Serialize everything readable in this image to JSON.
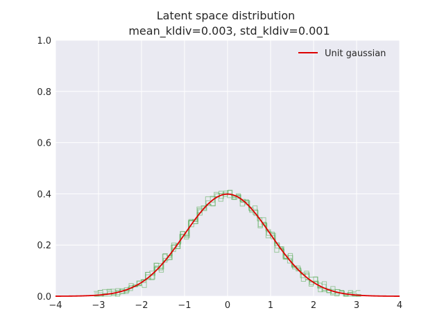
{
  "chart_data": {
    "type": "line",
    "title": "Latent space distribution",
    "subtitle": "mean_kldiv=0.003, std_kldiv=0.001",
    "xlabel": "",
    "ylabel": "",
    "xlim": [
      -4,
      4
    ],
    "ylim": [
      0,
      1.0
    ],
    "xticks": [
      "−4",
      "−3",
      "−2",
      "−1",
      "0",
      "1",
      "2",
      "3",
      "4"
    ],
    "xtick_values": [
      -4,
      -3,
      -2,
      -1,
      0,
      1,
      2,
      3,
      4
    ],
    "yticks": [
      "0.0",
      "0.2",
      "0.4",
      "0.6",
      "0.8",
      "1.0"
    ],
    "ytick_values": [
      0,
      0.2,
      0.4,
      0.6,
      0.8,
      1.0
    ],
    "grid": true,
    "legend_position": "top-right",
    "background_color": "#eaeaf2",
    "series": [
      {
        "name": "Unit gaussian",
        "color": "#dd0000",
        "function": "standard normal pdf"
      }
    ],
    "histograms": {
      "color": "#55aa55",
      "x": [
        -3.0,
        -2.8,
        -2.6,
        -2.4,
        -2.2,
        -2.0,
        -1.8,
        -1.6,
        -1.4,
        -1.2,
        -1.0,
        -0.8,
        -0.6,
        -0.4,
        -0.2,
        0.0,
        0.2,
        0.4,
        0.6,
        0.8,
        1.0,
        1.2,
        1.4,
        1.6,
        1.8,
        2.0,
        2.2,
        2.4,
        2.6,
        2.8,
        3.0
      ],
      "y": [
        0.005,
        0.008,
        0.014,
        0.022,
        0.036,
        0.055,
        0.08,
        0.111,
        0.15,
        0.195,
        0.242,
        0.29,
        0.335,
        0.37,
        0.392,
        0.4,
        0.392,
        0.368,
        0.334,
        0.288,
        0.241,
        0.194,
        0.15,
        0.11,
        0.079,
        0.055,
        0.036,
        0.022,
        0.014,
        0.008,
        0.004
      ]
    }
  }
}
